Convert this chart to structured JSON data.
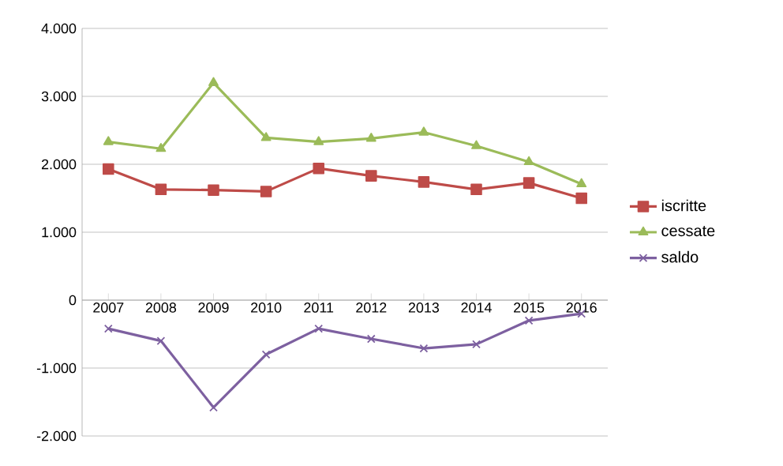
{
  "chart_data": {
    "type": "line",
    "categories": [
      "2007",
      "2008",
      "2009",
      "2010",
      "2011",
      "2012",
      "2013",
      "2014",
      "2015",
      "2016"
    ],
    "series": [
      {
        "name": "iscritte",
        "color": "#be4b48",
        "marker": "square",
        "values": [
          1930,
          1630,
          1620,
          1600,
          1940,
          1830,
          1740,
          1630,
          1725,
          1500
        ]
      },
      {
        "name": "cessate",
        "color": "#9bbb59",
        "marker": "triangle",
        "values": [
          2330,
          2230,
          3200,
          2390,
          2330,
          2380,
          2470,
          2270,
          2035,
          1710
        ]
      },
      {
        "name": "saldo",
        "color": "#7d60a0",
        "marker": "cross",
        "values": [
          -420,
          -600,
          -1580,
          -800,
          -420,
          -570,
          -710,
          -650,
          -300,
          -200
        ]
      }
    ],
    "ylim": [
      -2000,
      4000
    ],
    "yticks": [
      {
        "value": -2000,
        "label": "-2.000"
      },
      {
        "value": -1000,
        "label": "-1.000"
      },
      {
        "value": 0,
        "label": "0"
      },
      {
        "value": 1000,
        "label": "1.000"
      },
      {
        "value": 2000,
        "label": "2.000"
      },
      {
        "value": 3000,
        "label": "3.000"
      },
      {
        "value": 4000,
        "label": "4.000"
      }
    ],
    "grid": "y",
    "legend": "right",
    "line_style": "solid"
  }
}
